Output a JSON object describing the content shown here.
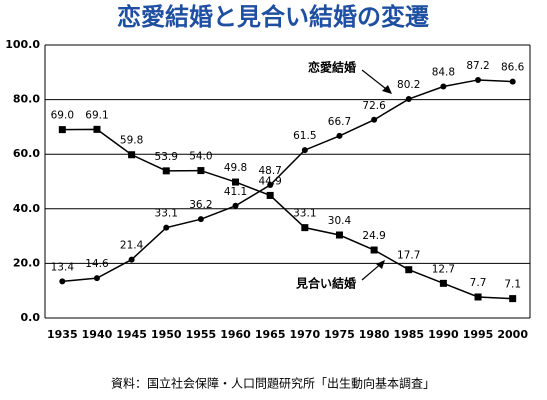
{
  "chart_data": {
    "type": "line",
    "title": "恋愛結婚と見合い結婚の変遷",
    "source": "資料：国立社会保障・人口問題研究所「出生動向基本調査」",
    "categories": [
      "1935",
      "1940",
      "1945",
      "1950",
      "1955",
      "1960",
      "1965",
      "1970",
      "1975",
      "1980",
      "1985",
      "1990",
      "1995",
      "2000"
    ],
    "series": [
      {
        "name": "恋愛結婚",
        "color": "#000000",
        "marker": "circle",
        "values": [
          13.4,
          14.6,
          21.4,
          33.1,
          36.2,
          41.1,
          48.7,
          61.5,
          66.7,
          72.6,
          80.2,
          84.8,
          87.2,
          86.6
        ]
      },
      {
        "name": "見合い結婚",
        "color": "#000000",
        "marker": "square",
        "values": [
          69.0,
          69.1,
          59.8,
          53.9,
          54.0,
          49.8,
          44.9,
          33.1,
          30.4,
          24.9,
          17.7,
          12.7,
          7.7,
          7.1
        ],
        "value_labels": [
          "69.0",
          "69.1",
          "59.8",
          "53.9",
          "54.0",
          "49.8",
          "44.9",
          "33.1",
          "30.4",
          "24.9",
          "17.7",
          "12.7",
          "7.7",
          "7.1"
        ]
      }
    ],
    "ylim": [
      0,
      100
    ],
    "yticks": [
      {
        "value": 0,
        "label": "0.0"
      },
      {
        "value": 20,
        "label": "20.0"
      },
      {
        "value": 40,
        "label": "40.0"
      },
      {
        "value": 60,
        "label": "60.0"
      },
      {
        "value": 80,
        "label": "80.0"
      },
      {
        "value": 100,
        "label": "100.0"
      }
    ],
    "grid": true
  }
}
